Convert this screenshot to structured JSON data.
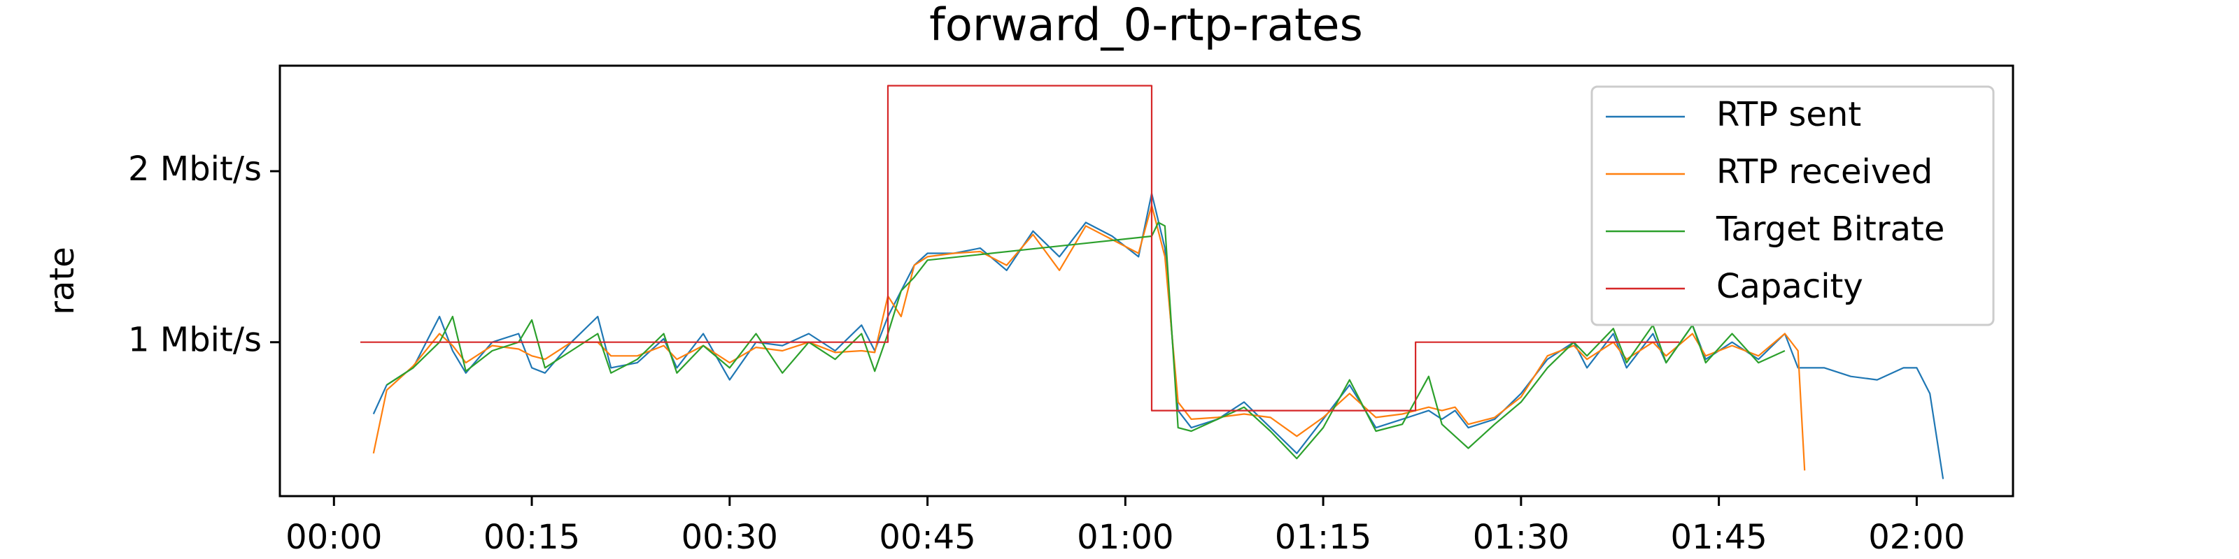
{
  "chart_data": {
    "type": "line",
    "title": "forward_0-rtp-rates",
    "y_label": "rate",
    "xlim": [
      -4.1,
      127.3
    ],
    "ylim": [
      100000,
      2617000
    ],
    "xticks": [
      {
        "value": 0,
        "label": "00:00"
      },
      {
        "value": 15,
        "label": "00:15"
      },
      {
        "value": 30,
        "label": "00:30"
      },
      {
        "value": 45,
        "label": "00:45"
      },
      {
        "value": 60,
        "label": "01:00"
      },
      {
        "value": 75,
        "label": "01:15"
      },
      {
        "value": 90,
        "label": "01:30"
      },
      {
        "value": 105,
        "label": "01:45"
      },
      {
        "value": 120,
        "label": "02:00"
      }
    ],
    "yticks": [
      {
        "value": 1000000,
        "label": "1 Mbit/s"
      },
      {
        "value": 2000000,
        "label": "2 Mbit/s"
      }
    ],
    "legend": "upper right",
    "series": [
      {
        "name": "RTP sent",
        "color": "#1f77b4",
        "x": [
          3,
          4,
          6,
          8,
          9,
          10,
          12,
          14,
          15,
          16,
          18,
          20,
          21,
          23,
          25,
          26,
          28,
          30,
          32,
          34,
          36,
          38,
          40,
          41,
          42,
          43,
          44,
          45,
          47,
          49,
          51,
          53,
          55,
          57,
          59,
          61,
          62,
          63,
          64,
          65,
          67,
          69,
          71,
          73,
          75,
          77,
          79,
          81,
          83,
          84,
          85,
          86,
          88,
          90,
          92,
          94,
          95,
          97,
          98,
          100,
          101,
          103,
          104,
          106,
          108,
          110,
          111,
          113,
          115,
          117,
          119,
          120,
          121,
          122
        ],
        "values": [
          580000,
          750000,
          850000,
          1150000,
          950000,
          820000,
          1000000,
          1050000,
          850000,
          820000,
          1000000,
          1150000,
          850000,
          880000,
          1020000,
          850000,
          1050000,
          780000,
          1000000,
          980000,
          1050000,
          950000,
          1100000,
          950000,
          1150000,
          1300000,
          1450000,
          1520000,
          1520000,
          1550000,
          1420000,
          1650000,
          1500000,
          1700000,
          1620000,
          1500000,
          1870000,
          1550000,
          600000,
          500000,
          550000,
          650000,
          500000,
          350000,
          550000,
          750000,
          500000,
          550000,
          600000,
          550000,
          600000,
          500000,
          550000,
          700000,
          900000,
          1000000,
          850000,
          1050000,
          850000,
          1050000,
          880000,
          1100000,
          900000,
          1000000,
          900000,
          1050000,
          850000,
          850000,
          800000,
          780000,
          850000,
          850000,
          700000,
          200000
        ]
      },
      {
        "name": "RTP received",
        "color": "#ff7f0e",
        "x": [
          3,
          4,
          6,
          8,
          9,
          10,
          12,
          14,
          15,
          16,
          18,
          20,
          21,
          23,
          25,
          26,
          28,
          30,
          32,
          34,
          36,
          38,
          40,
          41,
          42,
          43,
          44,
          45,
          47,
          49,
          51,
          53,
          55,
          57,
          59,
          61,
          62,
          63,
          64,
          65,
          67,
          69,
          71,
          73,
          75,
          77,
          79,
          81,
          83,
          84,
          85,
          86,
          88,
          90,
          92,
          94,
          95,
          97,
          98,
          100,
          101,
          103,
          104,
          106,
          108,
          110,
          111,
          111.5
        ],
        "values": [
          350000,
          720000,
          860000,
          1050000,
          980000,
          880000,
          980000,
          960000,
          920000,
          900000,
          1000000,
          1000000,
          920000,
          920000,
          980000,
          900000,
          980000,
          880000,
          970000,
          950000,
          1000000,
          940000,
          950000,
          940000,
          1270000,
          1150000,
          1450000,
          1500000,
          1520000,
          1530000,
          1450000,
          1630000,
          1420000,
          1680000,
          1600000,
          1520000,
          1800000,
          1500000,
          650000,
          550000,
          560000,
          580000,
          560000,
          450000,
          560000,
          700000,
          560000,
          580000,
          620000,
          600000,
          620000,
          520000,
          560000,
          680000,
          920000,
          980000,
          900000,
          1000000,
          900000,
          1000000,
          920000,
          1050000,
          920000,
          980000,
          920000,
          1050000,
          950000,
          250000
        ]
      },
      {
        "name": "Target Bitrate",
        "color": "#2ca02c",
        "x": [
          4,
          6,
          8,
          9,
          10,
          12,
          14,
          15,
          16,
          18,
          20,
          21,
          23,
          25,
          26,
          28,
          30,
          32,
          34,
          36,
          38,
          40,
          41,
          42,
          43,
          44,
          45,
          62,
          62.5,
          63,
          64,
          65,
          67,
          69,
          71,
          73,
          75,
          77,
          79,
          81,
          83,
          84,
          85,
          86,
          88,
          90,
          92,
          94,
          95,
          97,
          98,
          100,
          101,
          103,
          104,
          106,
          108,
          110
        ],
        "values": [
          750000,
          850000,
          1000000,
          1150000,
          830000,
          950000,
          1000000,
          1130000,
          850000,
          950000,
          1050000,
          820000,
          900000,
          1050000,
          820000,
          980000,
          850000,
          1050000,
          820000,
          1000000,
          900000,
          1050000,
          830000,
          1050000,
          1300000,
          1380000,
          1480000,
          1620000,
          1700000,
          1680000,
          500000,
          480000,
          550000,
          620000,
          480000,
          320000,
          500000,
          780000,
          480000,
          520000,
          800000,
          520000,
          450000,
          380000,
          520000,
          650000,
          850000,
          1000000,
          920000,
          1080000,
          880000,
          1100000,
          880000,
          1100000,
          880000,
          1050000,
          880000,
          950000
        ]
      },
      {
        "name": "Capacity",
        "color": "#d62728",
        "x": [
          2,
          42,
          42,
          62,
          62,
          82,
          82,
          102
        ],
        "values": [
          1000000,
          1000000,
          2500000,
          2500000,
          600000,
          600000,
          1000000,
          1000000
        ]
      }
    ]
  }
}
